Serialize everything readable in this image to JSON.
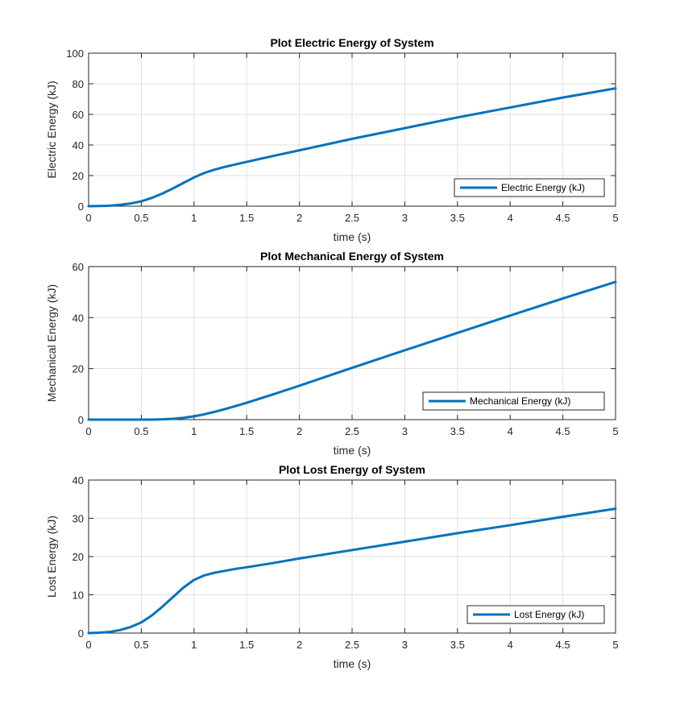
{
  "chart_data": [
    {
      "type": "line",
      "title": "Plot Electric Energy of System",
      "xlabel": "time (s)",
      "ylabel": "Electric Energy (kJ)",
      "xlim": [
        0,
        5
      ],
      "ylim": [
        0,
        100
      ],
      "xticks": [
        "0",
        "0.5",
        "1",
        "1.5",
        "2",
        "2.5",
        "3",
        "3.5",
        "4",
        "4.5",
        "5"
      ],
      "yticks": [
        "0",
        "20",
        "40",
        "60",
        "80",
        "100"
      ],
      "grid": true,
      "legend": "bottom-right",
      "color": "#0072BD",
      "series": [
        {
          "name": "Electric Energy (kJ)",
          "x": [
            0,
            0.1,
            0.2,
            0.3,
            0.4,
            0.5,
            0.6,
            0.7,
            0.8,
            0.9,
            1.0,
            1.1,
            1.2,
            1.3,
            1.4,
            1.5,
            1.75,
            2.0,
            2.5,
            3.0,
            3.5,
            4.0,
            4.5,
            5.0
          ],
          "y": [
            0,
            0.1,
            0.3,
            0.9,
            1.8,
            3.2,
            5.4,
            8.3,
            11.6,
            15.2,
            18.8,
            21.8,
            24.0,
            25.8,
            27.4,
            29.0,
            32.8,
            36.5,
            44.0,
            51.0,
            58.0,
            64.5,
            71.0,
            77.0
          ]
        }
      ]
    },
    {
      "type": "line",
      "title": "Plot Mechanical Energy of System",
      "xlabel": "time (s)",
      "ylabel": "Mechanical Energy (kJ)",
      "xlim": [
        0,
        5
      ],
      "ylim": [
        0,
        60
      ],
      "xticks": [
        "0",
        "0.5",
        "1",
        "1.5",
        "2",
        "2.5",
        "3",
        "3.5",
        "4",
        "4.5",
        "5"
      ],
      "yticks": [
        "0",
        "20",
        "40",
        "60"
      ],
      "grid": true,
      "legend": "bottom-right",
      "color": "#0072BD",
      "series": [
        {
          "name": "Mechanical Energy (kJ)",
          "x": [
            0,
            0.5,
            0.6,
            0.7,
            0.8,
            0.9,
            1.0,
            1.1,
            1.2,
            1.3,
            1.4,
            1.5,
            1.75,
            2.0,
            2.5,
            3.0,
            3.5,
            4.0,
            4.5,
            5.0
          ],
          "y": [
            0,
            0,
            0.02,
            0.1,
            0.3,
            0.7,
            1.3,
            2.1,
            3.1,
            4.2,
            5.4,
            6.6,
            9.9,
            13.3,
            20.3,
            27.2,
            34.0,
            40.8,
            47.5,
            54.0
          ]
        }
      ]
    },
    {
      "type": "line",
      "title": "Plot Lost Energy of System",
      "xlabel": "time (s)",
      "ylabel": "Lost Energy (kJ)",
      "xlim": [
        0,
        5
      ],
      "ylim": [
        0,
        40
      ],
      "xticks": [
        "0",
        "0.5",
        "1",
        "1.5",
        "2",
        "2.5",
        "3",
        "3.5",
        "4",
        "4.5",
        "5"
      ],
      "yticks": [
        "0",
        "10",
        "20",
        "30",
        "40"
      ],
      "grid": true,
      "legend": "bottom-right",
      "color": "#0072BD",
      "series": [
        {
          "name": "Lost Energy (kJ)",
          "x": [
            0,
            0.1,
            0.2,
            0.3,
            0.4,
            0.5,
            0.6,
            0.7,
            0.8,
            0.9,
            1.0,
            1.1,
            1.2,
            1.3,
            1.4,
            1.5,
            1.75,
            2.0,
            2.5,
            3.0,
            3.5,
            4.0,
            4.5,
            5.0
          ],
          "y": [
            0,
            0.1,
            0.3,
            0.8,
            1.6,
            2.8,
            4.6,
            6.9,
            9.4,
            11.9,
            13.9,
            15.1,
            15.8,
            16.3,
            16.8,
            17.2,
            18.3,
            19.5,
            21.7,
            23.9,
            26.1,
            28.2,
            30.4,
            32.5
          ]
        }
      ]
    }
  ]
}
